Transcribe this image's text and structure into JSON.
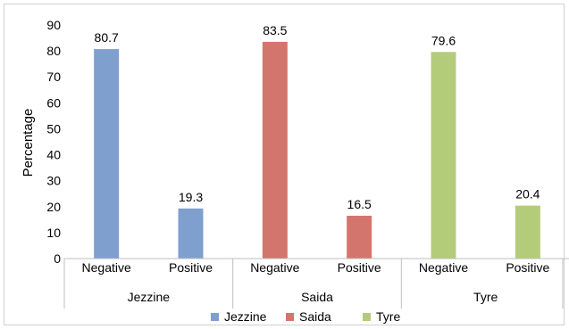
{
  "chart_data": {
    "type": "bar",
    "ylabel": "Percentage",
    "ylim": [
      0,
      90
    ],
    "ytick_step": 10,
    "grid": false,
    "legend_position": "bottom",
    "groups": [
      {
        "name": "Jezzine",
        "color": "#7f9fcf",
        "bars": [
          {
            "label": "Negative",
            "value": 80.7
          },
          {
            "label": "Positive",
            "value": 19.3
          }
        ]
      },
      {
        "name": "Saida",
        "color": "#d4756d",
        "bars": [
          {
            "label": "Negative",
            "value": 83.5
          },
          {
            "label": "Positive",
            "value": 16.5
          }
        ]
      },
      {
        "name": "Tyre",
        "color": "#b3cc7a",
        "bars": [
          {
            "label": "Negative",
            "value": 79.6
          },
          {
            "label": "Positive",
            "value": 20.4
          }
        ]
      }
    ],
    "legend": [
      "Jezzine",
      "Saida",
      "Tyre"
    ]
  }
}
